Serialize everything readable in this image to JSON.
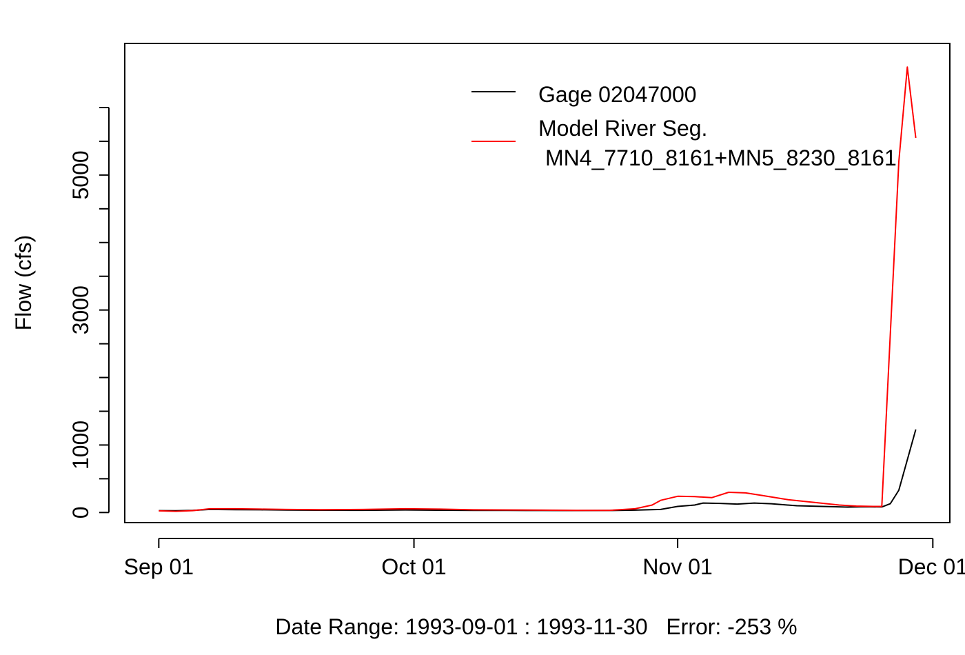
{
  "chart_data": {
    "type": "line",
    "title": "",
    "ylabel": "Flow (cfs)",
    "xlabel": "Date Range: 1993-09-01 : 1993-11-30   Error: -253 %",
    "x_ticks": [
      {
        "label": "Sep 01",
        "date": "1993-09-01"
      },
      {
        "label": "Oct 01",
        "date": "1993-10-01"
      },
      {
        "label": "Nov 01",
        "date": "1993-11-01"
      },
      {
        "label": "Dec 01",
        "date": "1993-12-01"
      }
    ],
    "y_ticks": [
      0,
      500,
      1000,
      1500,
      2000,
      2500,
      3000,
      3500,
      4000,
      4500,
      5000,
      5500,
      6000
    ],
    "y_tick_labels": [
      {
        "value": 0,
        "label": "0"
      },
      {
        "value": 1000,
        "label": "1000"
      },
      {
        "value": 3000,
        "label": "3000"
      },
      {
        "value": 5000,
        "label": "5000"
      }
    ],
    "xlim": [
      "1993-08-28",
      "1993-12-03"
    ],
    "ylim": [
      -150,
      6950
    ],
    "grid": false,
    "legend_position": "top-right",
    "series": [
      {
        "name": "Gage 02047000",
        "color": "#000000",
        "points": [
          [
            "1993-09-01",
            28
          ],
          [
            "1993-09-03",
            27
          ],
          [
            "1993-09-05",
            32
          ],
          [
            "1993-09-07",
            45
          ],
          [
            "1993-09-10",
            42
          ],
          [
            "1993-09-13",
            40
          ],
          [
            "1993-09-16",
            36
          ],
          [
            "1993-09-20",
            34
          ],
          [
            "1993-09-25",
            33
          ],
          [
            "1993-09-30",
            38
          ],
          [
            "1993-10-04",
            34
          ],
          [
            "1993-10-08",
            32
          ],
          [
            "1993-10-12",
            31
          ],
          [
            "1993-10-16",
            30
          ],
          [
            "1993-10-20",
            29
          ],
          [
            "1993-10-24",
            30
          ],
          [
            "1993-10-27",
            35
          ],
          [
            "1993-10-30",
            45
          ],
          [
            "1993-11-01",
            90
          ],
          [
            "1993-11-03",
            110
          ],
          [
            "1993-11-04",
            140
          ],
          [
            "1993-11-06",
            135
          ],
          [
            "1993-11-08",
            125
          ],
          [
            "1993-11-10",
            140
          ],
          [
            "1993-11-12",
            130
          ],
          [
            "1993-11-15",
            100
          ],
          [
            "1993-11-18",
            90
          ],
          [
            "1993-11-21",
            80
          ],
          [
            "1993-11-23",
            85
          ],
          [
            "1993-11-25",
            82
          ],
          [
            "1993-11-26",
            130
          ],
          [
            "1993-11-27",
            330
          ],
          [
            "1993-11-29",
            1230
          ]
        ]
      },
      {
        "name": "Model River Seg.\n MN4_7710_8161+MN5_8230_8161",
        "name_lines": [
          "Model River Seg.",
          "MN4_7710_8161+MN5_8230_8161"
        ],
        "color": "#ff0000",
        "points": [
          [
            "1993-09-01",
            25
          ],
          [
            "1993-09-03",
            18
          ],
          [
            "1993-09-05",
            28
          ],
          [
            "1993-09-07",
            55
          ],
          [
            "1993-09-10",
            55
          ],
          [
            "1993-09-13",
            50
          ],
          [
            "1993-09-16",
            45
          ],
          [
            "1993-09-20",
            42
          ],
          [
            "1993-09-25",
            45
          ],
          [
            "1993-09-30",
            55
          ],
          [
            "1993-10-04",
            50
          ],
          [
            "1993-10-08",
            40
          ],
          [
            "1993-10-12",
            38
          ],
          [
            "1993-10-16",
            35
          ],
          [
            "1993-10-20",
            32
          ],
          [
            "1993-10-24",
            32
          ],
          [
            "1993-10-27",
            55
          ],
          [
            "1993-10-29",
            110
          ],
          [
            "1993-10-30",
            180
          ],
          [
            "1993-11-01",
            240
          ],
          [
            "1993-11-03",
            235
          ],
          [
            "1993-11-05",
            220
          ],
          [
            "1993-11-07",
            300
          ],
          [
            "1993-11-09",
            290
          ],
          [
            "1993-11-11",
            250
          ],
          [
            "1993-11-14",
            190
          ],
          [
            "1993-11-17",
            150
          ],
          [
            "1993-11-20",
            110
          ],
          [
            "1993-11-22",
            95
          ],
          [
            "1993-11-24",
            90
          ],
          [
            "1993-11-25",
            90
          ],
          [
            "1993-11-27",
            5200
          ],
          [
            "1993-11-28",
            6600
          ],
          [
            "1993-11-29",
            5550
          ]
        ]
      }
    ]
  }
}
